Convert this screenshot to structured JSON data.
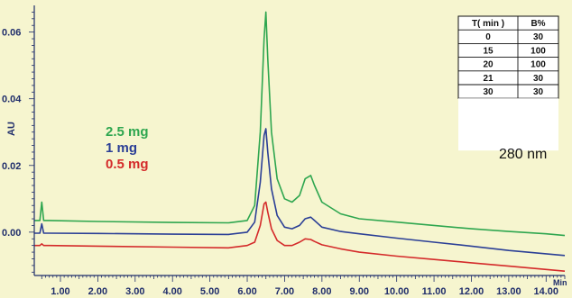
{
  "chart_data": {
    "type": "line",
    "xlabel": "Min",
    "ylabel": "AU",
    "xlim": [
      0.3,
      14.5
    ],
    "ylim": [
      -0.013,
      0.068
    ],
    "xticks": [
      "1.00",
      "2.00",
      "3.00",
      "4.00",
      "5.00",
      "6.00",
      "7.00",
      "8.00",
      "9.00",
      "10.00",
      "11.00",
      "12.00",
      "13.00",
      "14.00"
    ],
    "yticks": [
      "0.00",
      "0.02",
      "0.04",
      "0.06"
    ],
    "grid": false,
    "background": "#f6f5cf",
    "legend": {
      "position": "left-middle"
    },
    "wavelength_label": "280 nm",
    "gradient_table": {
      "headers": [
        "T( min )",
        "B%"
      ],
      "rows": [
        [
          "0",
          "30"
        ],
        [
          "15",
          "100"
        ],
        [
          "20",
          "100"
        ],
        [
          "21",
          "30"
        ],
        [
          "30",
          "30"
        ]
      ]
    },
    "series": [
      {
        "name": "2.5 mg",
        "color": "#2ea64f",
        "x": [
          0.3,
          0.45,
          0.5,
          0.55,
          0.7,
          2,
          4,
          5.5,
          6.0,
          6.2,
          6.35,
          6.45,
          6.5,
          6.55,
          6.65,
          6.8,
          7.0,
          7.2,
          7.4,
          7.55,
          7.7,
          7.8,
          8.0,
          8.5,
          9,
          10,
          11,
          12,
          13,
          14,
          14.5
        ],
        "y": [
          0.0035,
          0.0035,
          0.009,
          0.0035,
          0.0035,
          0.0032,
          0.0029,
          0.0028,
          0.0035,
          0.008,
          0.03,
          0.058,
          0.066,
          0.052,
          0.03,
          0.016,
          0.01,
          0.009,
          0.011,
          0.016,
          0.017,
          0.014,
          0.009,
          0.0055,
          0.004,
          0.003,
          0.002,
          0.001,
          0.0002,
          -0.0005,
          -0.001
        ]
      },
      {
        "name": "1 mg",
        "color": "#2b3f96",
        "x": [
          0.3,
          0.45,
          0.5,
          0.55,
          0.7,
          2,
          4,
          5.5,
          6.0,
          6.2,
          6.35,
          6.45,
          6.5,
          6.55,
          6.65,
          6.8,
          7.0,
          7.2,
          7.4,
          7.55,
          7.7,
          7.8,
          8.0,
          8.5,
          9,
          10,
          11,
          12,
          13,
          14,
          14.5
        ],
        "y": [
          -0.0003,
          -0.0003,
          0.0025,
          -0.0003,
          -0.0003,
          -0.0004,
          -0.0006,
          -0.0007,
          0.0,
          0.003,
          0.015,
          0.029,
          0.031,
          0.024,
          0.013,
          0.005,
          0.0015,
          0.001,
          0.002,
          0.004,
          0.0045,
          0.0035,
          0.0015,
          0.0002,
          -0.0005,
          -0.0018,
          -0.003,
          -0.0042,
          -0.0055,
          -0.0065,
          -0.007
        ]
      },
      {
        "name": "0.5 mg",
        "color": "#d42a2a",
        "x": [
          0.3,
          0.45,
          0.5,
          0.55,
          0.7,
          2,
          4,
          5.5,
          6.0,
          6.2,
          6.35,
          6.45,
          6.5,
          6.55,
          6.65,
          6.8,
          7.0,
          7.2,
          7.4,
          7.55,
          7.7,
          7.8,
          8.0,
          8.5,
          9,
          10,
          11,
          12,
          13,
          14,
          14.5
        ],
        "y": [
          -0.004,
          -0.004,
          -0.0035,
          -0.004,
          -0.004,
          -0.0042,
          -0.0045,
          -0.0047,
          -0.004,
          -0.003,
          0.002,
          0.0085,
          0.009,
          0.006,
          0.001,
          -0.0025,
          -0.004,
          -0.004,
          -0.003,
          -0.002,
          -0.0022,
          -0.0028,
          -0.0038,
          -0.005,
          -0.006,
          -0.0072,
          -0.0082,
          -0.0092,
          -0.0102,
          -0.0112,
          -0.0117
        ]
      }
    ]
  }
}
